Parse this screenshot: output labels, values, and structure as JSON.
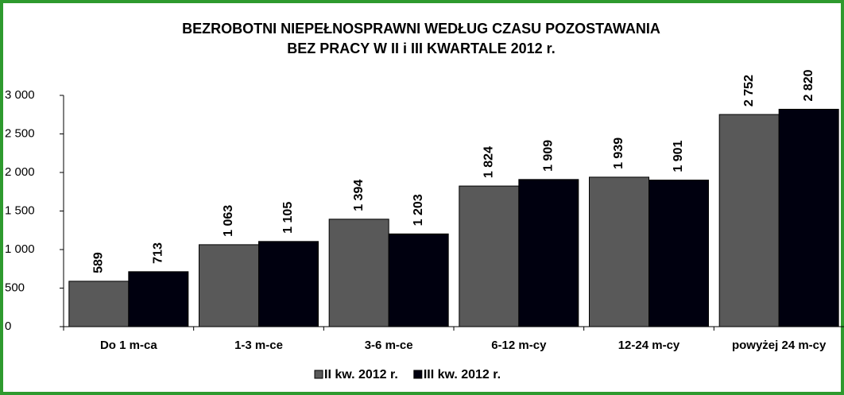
{
  "chart_data": {
    "type": "bar",
    "title": "BEZROBOTNI NIEPEŁNOSPRAWNI WEDŁUG  CZASU POZOSTAWANIA",
    "subtitle": "BEZ PRACY W II i III KWARTALE 2012 r.",
    "categories": [
      "Do 1 m-ca",
      "1-3 m-ce",
      "3-6 m-ce",
      "6-12 m-cy",
      "12-24 m-cy",
      "powyżej 24 m-cy"
    ],
    "series": [
      {
        "name": "II kw. 2012 r.",
        "color": "#595959",
        "values": [
          589,
          1063,
          1394,
          1824,
          1939,
          2752
        ],
        "value_labels": [
          "589",
          "1 063",
          "1 394",
          "1 824",
          "1 939",
          "2 752"
        ]
      },
      {
        "name": "III kw. 2012 r.",
        "color": "#00000f",
        "values": [
          713,
          1105,
          1203,
          1909,
          1901,
          2820
        ],
        "value_labels": [
          "713",
          "1 105",
          "1 203",
          "1 909",
          "1 901",
          "2 820"
        ]
      }
    ],
    "ylim": [
      0,
      3000
    ],
    "yticks": [
      0,
      500,
      {
        "value": 1000,
        "label": "1 000"
      },
      {
        "value": 1500,
        "label": "1 500"
      },
      {
        "value": 2000,
        "label": "2 000"
      },
      {
        "value": 2500,
        "label": "2 500"
      },
      {
        "value": 3000,
        "label": "3 000"
      }
    ],
    "legend": "bottom"
  }
}
